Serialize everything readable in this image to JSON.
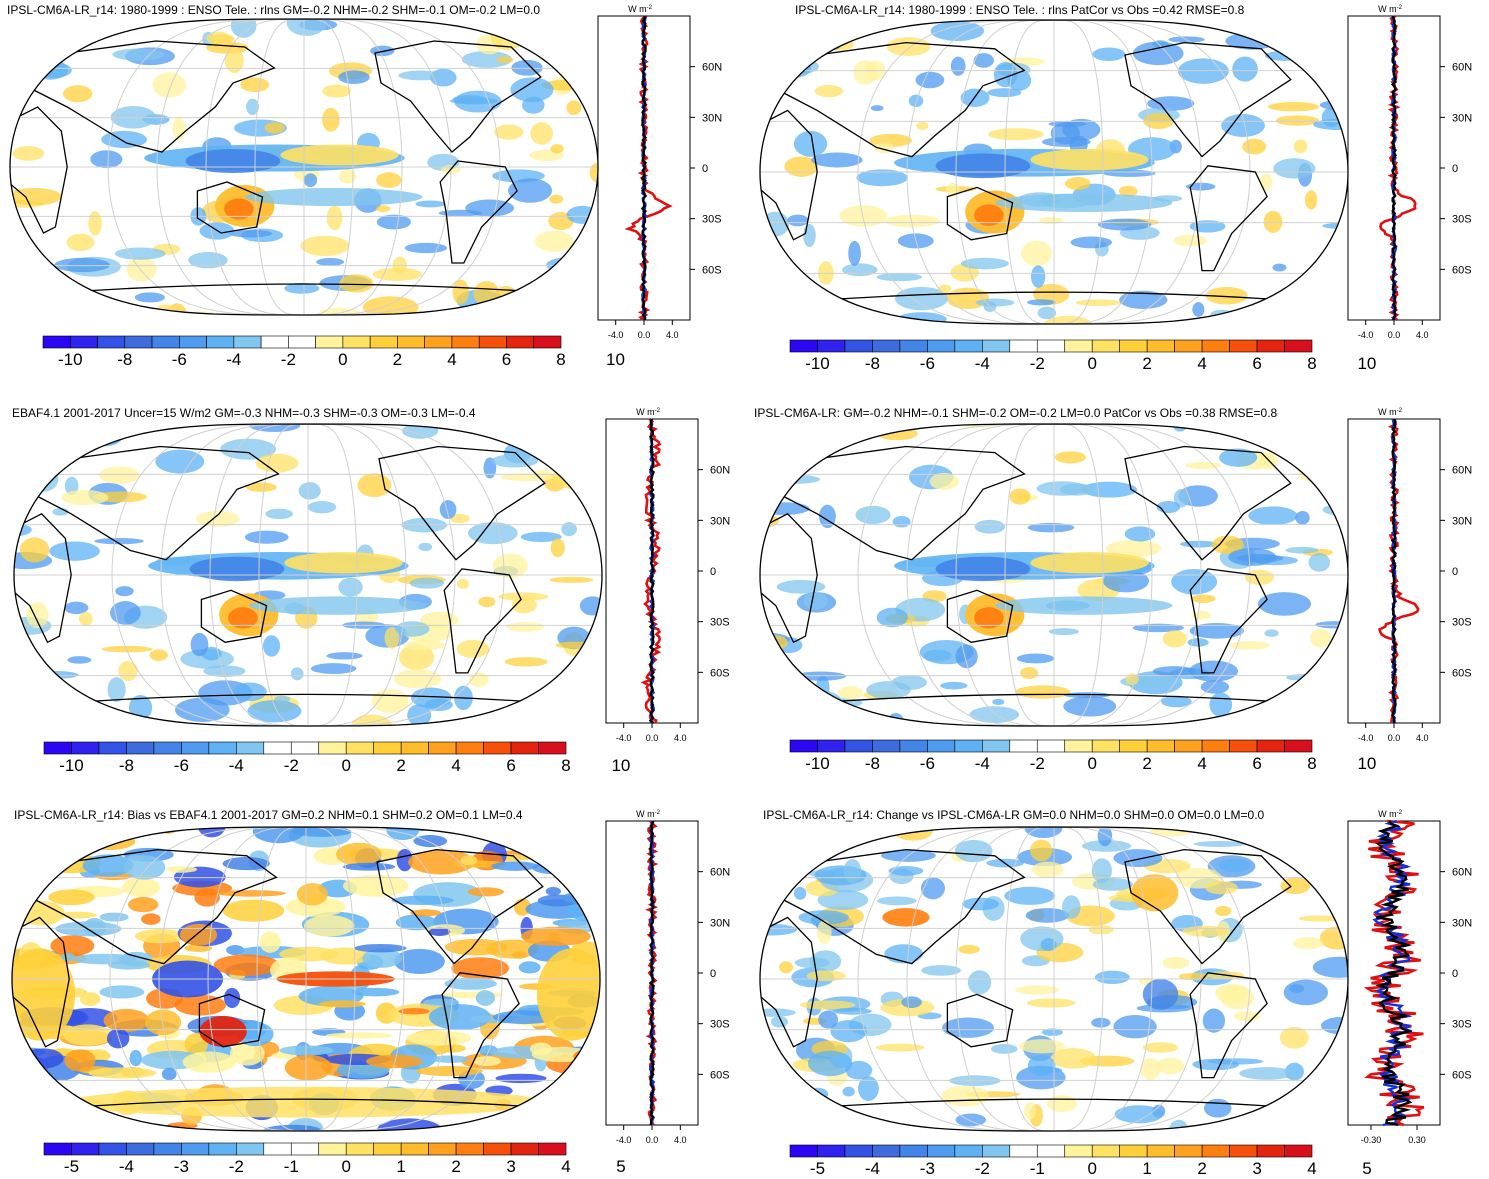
{
  "colors": {
    "cbar6": [
      "#2b06f2",
      "#2f22ee",
      "#3352e6",
      "#3e6bdd",
      "#4384e8",
      "#4f9bf0",
      "#5eb2f4",
      "#81c6ee",
      "#ffffff",
      "#ffffff",
      "#fff39c",
      "#ffe163",
      "#ffd03a",
      "#ffbd2c",
      "#ffa01e",
      "#ff7e10",
      "#f6500a",
      "#e32510",
      "#d8101c"
    ],
    "land_line": "#000000",
    "grid": "#d0d0d0"
  },
  "panels": [
    {
      "title": "IPSL-CM6A-LR_r14: 1980-1999 : ENSO Tele. : rlns GM=-0.2 NHM=-0.2 SHM=-0.1 OM=-0.2 LM=0.0",
      "zonal_unit": "W m",
      "zonal_unit_sup": "-2",
      "lat_ticks": [
        "60N",
        "30N",
        "0",
        "30S",
        "60S"
      ],
      "x_ticks": [
        "-4.0",
        "0.0",
        "4.0"
      ],
      "cbar_labels": [
        "-10",
        "-8",
        "-6",
        "-4",
        "-2",
        "0",
        "2",
        "4",
        "6",
        "8",
        "10"
      ]
    },
    {
      "title": "IPSL-CM6A-LR_r14: 1980-1999 : ENSO Tele. : rlns PatCor vs Obs =0.42 RMSE=0.8",
      "zonal_unit": "W m",
      "zonal_unit_sup": "-2",
      "lat_ticks": [
        "60N",
        "30N",
        "0",
        "30S",
        "60S"
      ],
      "x_ticks": [
        "-4.0",
        "0.0",
        "4.0"
      ],
      "cbar_labels": [
        "-10",
        "-8",
        "-6",
        "-4",
        "-2",
        "0",
        "2",
        "4",
        "6",
        "8",
        "10"
      ]
    },
    {
      "title": "EBAF4.1 2001-2017 Uncer=15 W/m2 GM=-0.3 NHM=-0.3 SHM=-0.3 OM=-0.3 LM=-0.4",
      "zonal_unit": "W m",
      "zonal_unit_sup": "-2",
      "lat_ticks": [
        "60N",
        "30N",
        "0",
        "30S",
        "60S"
      ],
      "x_ticks": [
        "-4.0",
        "0.0",
        "4.0"
      ],
      "cbar_labels": [
        "-10",
        "-8",
        "-6",
        "-4",
        "-2",
        "0",
        "2",
        "4",
        "6",
        "8",
        "10"
      ]
    },
    {
      "title": "IPSL-CM6A-LR: GM=-0.2 NHM=-0.1 SHM=-0.2 OM=-0.2 LM=0.0 PatCor vs Obs =0.38 RMSE=0.8",
      "zonal_unit": "W m",
      "zonal_unit_sup": "-2",
      "lat_ticks": [
        "60N",
        "30N",
        "0",
        "30S",
        "60S"
      ],
      "x_ticks": [
        "-4.0",
        "0.0",
        "4.0"
      ],
      "cbar_labels": [
        "-10",
        "-8",
        "-6",
        "-4",
        "-2",
        "0",
        "2",
        "4",
        "6",
        "8",
        "10"
      ]
    },
    {
      "title": "IPSL-CM6A-LR_r14: Bias vs EBAF4.1 2001-2017 GM=0.2 NHM=0.1 SHM=0.2 OM=0.1 LM=0.4",
      "zonal_unit": "W m",
      "zonal_unit_sup": "-2",
      "lat_ticks": [
        "60N",
        "30N",
        "0",
        "30S",
        "60S"
      ],
      "x_ticks": [
        "-4.0",
        "0.0",
        "4.0"
      ],
      "cbar_labels": [
        "-5",
        "-4",
        "-3",
        "-2",
        "-1",
        "0",
        "1",
        "2",
        "3",
        "4",
        "5"
      ]
    },
    {
      "title": "IPSL-CM6A-LR_r14: Change vs IPSL-CM6A-LR GM=0.0 NHM=0.0 SHM=0.0 OM=0.0 LM=0.0",
      "zonal_unit": "W m",
      "zonal_unit_sup": "-2",
      "lat_ticks": [
        "60N",
        "30N",
        "0",
        "30S",
        "60S"
      ],
      "x_ticks": [
        "-0.30",
        "0.30"
      ],
      "cbar_labels": [
        "-5",
        "-4",
        "-3",
        "-2",
        "-1",
        "0",
        "1",
        "2",
        "3",
        "4",
        "5"
      ]
    }
  ]
}
